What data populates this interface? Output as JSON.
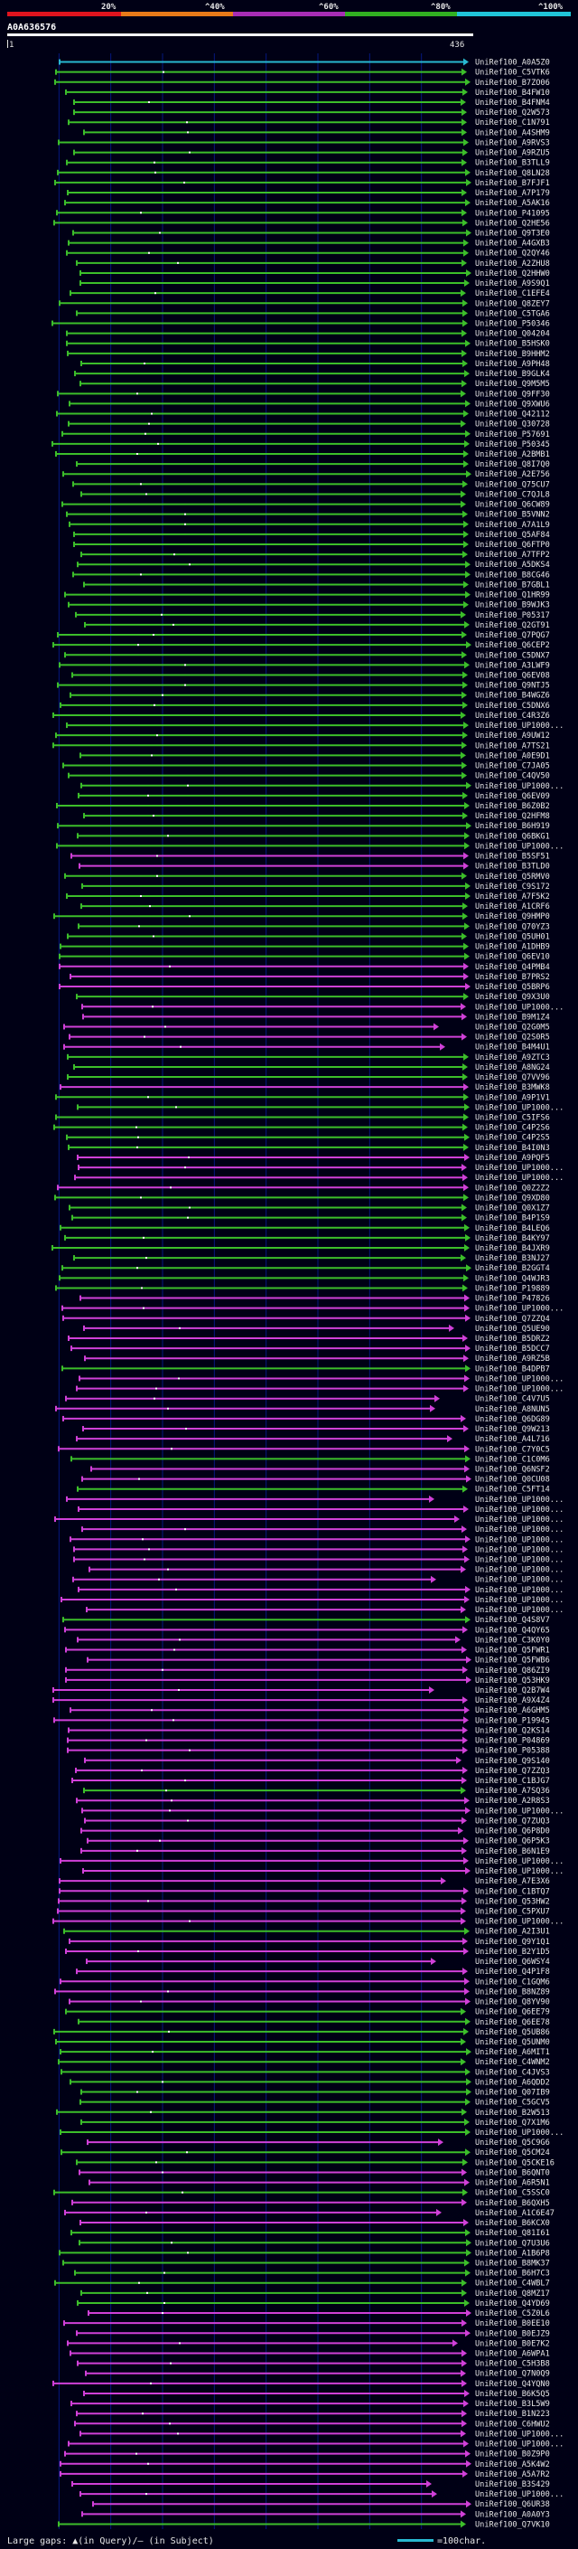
{
  "colors": {
    "background": "#000015",
    "scale_segments": [
      "#e0141e",
      "#e87a19",
      "#a72db4",
      "#31b021",
      "#20c5d8"
    ],
    "green_hit": "#3cbe2a",
    "magenta_hit": "#d040d8",
    "cyan_query": "#28b8d0",
    "gap_dot": "#ffffff",
    "label": "#e6e6e6",
    "grid": "#0a2bd6"
  },
  "scale": {
    "ticks": [
      "20%",
      "^40%",
      "^60%",
      "^80%",
      "^100%"
    ]
  },
  "query": {
    "id": "A0A636576",
    "start_label": "1",
    "end_label": "436"
  },
  "legend": {
    "text": "Large gaps: ▲(in Query)/– (in Subject)",
    "scale_text": "=100char."
  },
  "hits": [
    {
      "label": "UniRef100_A0A5Z0",
      "kind": "cyan"
    },
    {
      "label": "UniRef100_C5VTK6",
      "kind": "green"
    },
    {
      "label": "UniRef100_B7ZO06",
      "kind": "green"
    },
    {
      "label": "UniRef100_B4FW10",
      "kind": "green"
    },
    {
      "label": "UniRef100_B4FNM4",
      "kind": "green"
    },
    {
      "label": "UniRef100_Q2W573",
      "kind": "green"
    },
    {
      "label": "UniRef100_C1N791",
      "kind": "green"
    },
    {
      "label": "UniRef100_A4SHM9",
      "kind": "green"
    },
    {
      "label": "UniRef100_A9RVS3",
      "kind": "green"
    },
    {
      "label": "UniRef100_A9RZU5",
      "kind": "green"
    },
    {
      "label": "UniRef100_B3TLL9",
      "kind": "green"
    },
    {
      "label": "UniRef100_Q8LN28",
      "kind": "green"
    },
    {
      "label": "UniRef100_B7FJF1",
      "kind": "green"
    },
    {
      "label": "UniRef100_A7P179",
      "kind": "green"
    },
    {
      "label": "UniRef100_A5AK16",
      "kind": "green"
    },
    {
      "label": "UniRef100_P41095",
      "kind": "green"
    },
    {
      "label": "UniRef100_Q2HE56",
      "kind": "green"
    },
    {
      "label": "UniRef100_Q9T3E0",
      "kind": "green"
    },
    {
      "label": "UniRef100_A4GXB3",
      "kind": "green"
    },
    {
      "label": "UniRef100_Q2QY46",
      "kind": "green"
    },
    {
      "label": "UniRef100_A2ZHU8",
      "kind": "green"
    },
    {
      "label": "UniRef100_Q2HHW0",
      "kind": "green"
    },
    {
      "label": "UniRef100_A9S9Q1",
      "kind": "green"
    },
    {
      "label": "UniRef100_C1EFE4",
      "kind": "green"
    },
    {
      "label": "UniRef100_Q8ZEY7",
      "kind": "green"
    },
    {
      "label": "UniRef100_C5TGA6",
      "kind": "green"
    },
    {
      "label": "UniRef100_P50346",
      "kind": "green"
    },
    {
      "label": "UniRef100_Q04204",
      "kind": "green"
    },
    {
      "label": "UniRef100_B5HSK0",
      "kind": "green"
    },
    {
      "label": "UniRef100_B9HHM2",
      "kind": "green"
    },
    {
      "label": "UniRef100_A9PH48",
      "kind": "green"
    },
    {
      "label": "UniRef100_B9GLK4",
      "kind": "green"
    },
    {
      "label": "UniRef100_Q9M5M5",
      "kind": "green"
    },
    {
      "label": "UniRef100_Q9FF30",
      "kind": "green"
    },
    {
      "label": "UniRef100_Q9XWU6",
      "kind": "green"
    },
    {
      "label": "UniRef100_Q42112",
      "kind": "green"
    },
    {
      "label": "UniRef100_Q30728",
      "kind": "green"
    },
    {
      "label": "UniRef100_P57691",
      "kind": "green"
    },
    {
      "label": "UniRef100_P50345",
      "kind": "green"
    },
    {
      "label": "UniRef100_A2BMB1",
      "kind": "green"
    },
    {
      "label": "UniRef100_Q8I7Q0",
      "kind": "green"
    },
    {
      "label": "UniRef100_A2E756",
      "kind": "green"
    },
    {
      "label": "UniRef100_Q75CU7",
      "kind": "green"
    },
    {
      "label": "UniRef100_C7QJL8",
      "kind": "green"
    },
    {
      "label": "UniRef100_Q6CW89",
      "kind": "green"
    },
    {
      "label": "UniRef100_B5VNN2",
      "kind": "green"
    },
    {
      "label": "UniRef100_A7A1L9",
      "kind": "green"
    },
    {
      "label": "UniRef100_Q5AF84",
      "kind": "green"
    },
    {
      "label": "UniRef100_Q6FTP0",
      "kind": "green"
    },
    {
      "label": "UniRef100_A7TFP2",
      "kind": "green"
    },
    {
      "label": "UniRef100_A5DKS4",
      "kind": "green"
    },
    {
      "label": "UniRef100_B8CG46",
      "kind": "green"
    },
    {
      "label": "UniRef100_B7GBL1",
      "kind": "green"
    },
    {
      "label": "UniRef100_Q1HR99",
      "kind": "green"
    },
    {
      "label": "UniRef100_B9WJK3",
      "kind": "green"
    },
    {
      "label": "UniRef100_P05317",
      "kind": "green"
    },
    {
      "label": "UniRef100_Q2GT91",
      "kind": "green"
    },
    {
      "label": "UniRef100_Q7PQG7",
      "kind": "green"
    },
    {
      "label": "UniRef100_Q6CEP2",
      "kind": "green"
    },
    {
      "label": "UniRef100_C5DNX7",
      "kind": "green"
    },
    {
      "label": "UniRef100_A3LWF9",
      "kind": "green"
    },
    {
      "label": "UniRef100_Q6EV08",
      "kind": "green"
    },
    {
      "label": "UniRef100_Q9NTJ5",
      "kind": "green"
    },
    {
      "label": "UniRef100_B4WGZ6",
      "kind": "green"
    },
    {
      "label": "UniRef100_C5DNX6",
      "kind": "green"
    },
    {
      "label": "UniRef100_C4R3Z6",
      "kind": "green"
    },
    {
      "label": "UniRef100_UP1000...",
      "kind": "green"
    },
    {
      "label": "UniRef100_A9UW12",
      "kind": "green"
    },
    {
      "label": "UniRef100_A7TS21",
      "kind": "green"
    },
    {
      "label": "UniRef100_A0E9D1",
      "kind": "green"
    },
    {
      "label": "UniRef100_C7JA05",
      "kind": "green"
    },
    {
      "label": "UniRef100_C4QV50",
      "kind": "green"
    },
    {
      "label": "UniRef100_UP1000...",
      "kind": "green"
    },
    {
      "label": "UniRef100_Q6EV09",
      "kind": "green"
    },
    {
      "label": "UniRef100_B6Z0B2",
      "kind": "green"
    },
    {
      "label": "UniRef100_Q2HFM8",
      "kind": "green"
    },
    {
      "label": "UniRef100_B6H919",
      "kind": "green"
    },
    {
      "label": "UniRef100_Q6BKG1",
      "kind": "green"
    },
    {
      "label": "UniRef100_UP1000...",
      "kind": "green"
    },
    {
      "label": "UniRef100_B5SF51",
      "kind": "magenta"
    },
    {
      "label": "UniRef100_B3TLD0",
      "kind": "magenta"
    },
    {
      "label": "UniRef100_Q5RMV0",
      "kind": "green"
    },
    {
      "label": "UniRef100_C9S172",
      "kind": "green"
    },
    {
      "label": "UniRef100_A7F5K2",
      "kind": "green"
    },
    {
      "label": "UniRef100_A1CRF6",
      "kind": "green"
    },
    {
      "label": "UniRef100_Q9HMP0",
      "kind": "green"
    },
    {
      "label": "UniRef100_Q70YZ3",
      "kind": "green"
    },
    {
      "label": "UniRef100_Q5UH01",
      "kind": "green"
    },
    {
      "label": "UniRef100_A1DHB9",
      "kind": "green"
    },
    {
      "label": "UniRef100_Q6EV10",
      "kind": "green"
    },
    {
      "label": "UniRef100_Q4PMB4",
      "kind": "magenta"
    },
    {
      "label": "UniRef100_B7PRS2",
      "kind": "magenta"
    },
    {
      "label": "UniRef100_Q5BRP6",
      "kind": "magenta"
    },
    {
      "label": "UniRef100_Q9X3U0",
      "kind": "green"
    },
    {
      "label": "UniRef100_UP1000...",
      "kind": "magenta"
    },
    {
      "label": "UniRef100_B9M1Z4",
      "kind": "magenta"
    },
    {
      "label": "UniRef100_Q2G0M5",
      "kind": "magenta"
    },
    {
      "label": "UniRef100_Q2S0R5",
      "kind": "magenta"
    },
    {
      "label": "UniRef100_B4M4U1",
      "kind": "magenta"
    },
    {
      "label": "UniRef100_A9ZTC3",
      "kind": "green"
    },
    {
      "label": "UniRef100_A8NG24",
      "kind": "green"
    },
    {
      "label": "UniRef100_Q7VV96",
      "kind": "green"
    },
    {
      "label": "UniRef100_B3MWK8",
      "kind": "magenta"
    },
    {
      "label": "UniRef100_A9P1V1",
      "kind": "green"
    },
    {
      "label": "UniRef100_UP1000...",
      "kind": "green"
    },
    {
      "label": "UniRef100_C5IFS6",
      "kind": "green"
    },
    {
      "label": "UniRef100_C4P2S6",
      "kind": "green"
    },
    {
      "label": "UniRef100_C4P2S5",
      "kind": "green"
    },
    {
      "label": "UniRef100_B4I0N3",
      "kind": "green"
    },
    {
      "label": "UniRef100_A9PQF5",
      "kind": "magenta"
    },
    {
      "label": "UniRef100_UP1000...",
      "kind": "magenta"
    },
    {
      "label": "UniRef100_UP1000...",
      "kind": "magenta"
    },
    {
      "label": "UniRef100_Q0Z2Z2",
      "kind": "magenta"
    },
    {
      "label": "UniRef100_Q9XD80",
      "kind": "green"
    },
    {
      "label": "UniRef100_Q0X1Z7",
      "kind": "green"
    },
    {
      "label": "UniRef100_B4P1S9",
      "kind": "green"
    },
    {
      "label": "UniRef100_B4LEQ6",
      "kind": "green"
    },
    {
      "label": "UniRef100_B4KY97",
      "kind": "green"
    },
    {
      "label": "UniRef100_B4JXR9",
      "kind": "green"
    },
    {
      "label": "UniRef100_B3NJ27",
      "kind": "green"
    },
    {
      "label": "UniRef100_B2GGT4",
      "kind": "green"
    },
    {
      "label": "UniRef100_Q4WJR3",
      "kind": "green"
    },
    {
      "label": "UniRef100_P19889",
      "kind": "green"
    },
    {
      "label": "UniRef100_P47826",
      "kind": "magenta"
    },
    {
      "label": "UniRef100_UP1000...",
      "kind": "magenta"
    },
    {
      "label": "UniRef100_Q7ZZQ4",
      "kind": "magenta"
    },
    {
      "label": "UniRef100_Q5UE90",
      "kind": "magenta"
    },
    {
      "label": "UniRef100_B5DRZ2",
      "kind": "magenta"
    },
    {
      "label": "UniRef100_B5DCC7",
      "kind": "magenta"
    },
    {
      "label": "UniRef100_A9RZ5B",
      "kind": "magenta"
    },
    {
      "label": "UniRef100_B4DPB7",
      "kind": "green"
    },
    {
      "label": "UniRef100_UP1000...",
      "kind": "magenta"
    },
    {
      "label": "UniRef100_UP1000...",
      "kind": "magenta"
    },
    {
      "label": "UniRef100_C4V7U5",
      "kind": "magenta"
    },
    {
      "label": "UniRef100_A8NUN5",
      "kind": "magenta"
    },
    {
      "label": "UniRef100_Q6DG89",
      "kind": "magenta"
    },
    {
      "label": "UniRef100_Q9W213",
      "kind": "magenta"
    },
    {
      "label": "UniRef100_A4L716",
      "kind": "magenta"
    },
    {
      "label": "UniRef100_C7Y0C5",
      "kind": "magenta"
    },
    {
      "label": "UniRef100_C1C0M6",
      "kind": "green"
    },
    {
      "label": "UniRef100_Q6NSF2",
      "kind": "magenta"
    },
    {
      "label": "UniRef100_Q0CU08",
      "kind": "magenta"
    },
    {
      "label": "UniRef100_C5FT14",
      "kind": "green"
    },
    {
      "label": "UniRef100_UP1000...",
      "kind": "magenta"
    },
    {
      "label": "UniRef100_UP1000...",
      "kind": "magenta"
    },
    {
      "label": "UniRef100_UP1000...",
      "kind": "magenta"
    },
    {
      "label": "UniRef100_UP1000...",
      "kind": "magenta"
    },
    {
      "label": "UniRef100_UP1000...",
      "kind": "magenta"
    },
    {
      "label": "UniRef100_UP1000...",
      "kind": "magenta"
    },
    {
      "label": "UniRef100_UP1000...",
      "kind": "magenta"
    },
    {
      "label": "UniRef100_UP1000...",
      "kind": "magenta"
    },
    {
      "label": "UniRef100_UP1000...",
      "kind": "magenta"
    },
    {
      "label": "UniRef100_UP1000...",
      "kind": "magenta"
    },
    {
      "label": "UniRef100_UP1000...",
      "kind": "magenta"
    },
    {
      "label": "UniRef100_UP1000...",
      "kind": "magenta"
    },
    {
      "label": "UniRef100_Q4S8V7",
      "kind": "green"
    },
    {
      "label": "UniRef100_Q4QY65",
      "kind": "magenta"
    },
    {
      "label": "UniRef100_C3K0Y0",
      "kind": "magenta"
    },
    {
      "label": "UniRef100_Q5FWR1",
      "kind": "magenta"
    },
    {
      "label": "UniRef100_Q5FWB6",
      "kind": "magenta"
    },
    {
      "label": "UniRef100_Q86ZI9",
      "kind": "magenta"
    },
    {
      "label": "UniRef100_Q53HK9",
      "kind": "magenta"
    },
    {
      "label": "UniRef100_Q2B7W4",
      "kind": "magenta"
    },
    {
      "label": "UniRef100_A9X4Z4",
      "kind": "magenta"
    },
    {
      "label": "UniRef100_A6GHM5",
      "kind": "magenta"
    },
    {
      "label": "UniRef100_P19945",
      "kind": "magenta"
    },
    {
      "label": "UniRef100_Q2KS14",
      "kind": "magenta"
    },
    {
      "label": "UniRef100_P04869",
      "kind": "magenta"
    },
    {
      "label": "UniRef100_P05388",
      "kind": "magenta"
    },
    {
      "label": "UniRef100_Q9S140",
      "kind": "magenta"
    },
    {
      "label": "UniRef100_Q7ZZQ3",
      "kind": "magenta"
    },
    {
      "label": "UniRef100_C1BJG7",
      "kind": "magenta"
    },
    {
      "label": "UniRef100_A7SQ36",
      "kind": "green"
    },
    {
      "label": "UniRef100_A2R8S3",
      "kind": "magenta"
    },
    {
      "label": "UniRef100_UP1000...",
      "kind": "magenta"
    },
    {
      "label": "UniRef100_Q7ZUQ3",
      "kind": "magenta"
    },
    {
      "label": "UniRef100_Q6P8D0",
      "kind": "magenta"
    },
    {
      "label": "UniRef100_Q6P5K3",
      "kind": "magenta"
    },
    {
      "label": "UniRef100_B6N1E9",
      "kind": "magenta"
    },
    {
      "label": "UniRef100_UP1000...",
      "kind": "magenta"
    },
    {
      "label": "UniRef100_UP1000...",
      "kind": "magenta"
    },
    {
      "label": "UniRef100_A7E3X6",
      "kind": "magenta"
    },
    {
      "label": "UniRef100_C1BTQ7",
      "kind": "magenta"
    },
    {
      "label": "UniRef100_Q53HW2",
      "kind": "magenta"
    },
    {
      "label": "UniRef100_C5PXU7",
      "kind": "magenta"
    },
    {
      "label": "UniRef100_UP1000...",
      "kind": "magenta"
    },
    {
      "label": "UniRef100_A2I3U1",
      "kind": "green"
    },
    {
      "label": "UniRef100_Q9Y1Q1",
      "kind": "magenta"
    },
    {
      "label": "UniRef100_B2Y1D5",
      "kind": "magenta"
    },
    {
      "label": "UniRef100_Q6WSY4",
      "kind": "magenta"
    },
    {
      "label": "UniRef100_Q4P1F8",
      "kind": "magenta"
    },
    {
      "label": "UniRef100_C1GQM6",
      "kind": "magenta"
    },
    {
      "label": "UniRef100_B8NZ89",
      "kind": "magenta"
    },
    {
      "label": "UniRef100_Q8YV90",
      "kind": "magenta"
    },
    {
      "label": "UniRef100_Q6EE79",
      "kind": "green"
    },
    {
      "label": "UniRef100_Q6EE78",
      "kind": "green"
    },
    {
      "label": "UniRef100_Q5UB86",
      "kind": "green"
    },
    {
      "label": "UniRef100_Q5UNM0",
      "kind": "green"
    },
    {
      "label": "UniRef100_A6MIT1",
      "kind": "green"
    },
    {
      "label": "UniRef100_C4WNM2",
      "kind": "green"
    },
    {
      "label": "UniRef100_C4JVS3",
      "kind": "green"
    },
    {
      "label": "UniRef100_A6QDD2",
      "kind": "green"
    },
    {
      "label": "UniRef100_Q07IB9",
      "kind": "green"
    },
    {
      "label": "UniRef100_C5GCV5",
      "kind": "green"
    },
    {
      "label": "UniRef100_B2W513",
      "kind": "green"
    },
    {
      "label": "UniRef100_Q7X1M6",
      "kind": "green"
    },
    {
      "label": "UniRef100_UP1000...",
      "kind": "green"
    },
    {
      "label": "UniRef100_Q5C9G6",
      "kind": "magenta"
    },
    {
      "label": "UniRef100_Q5CM24",
      "kind": "green"
    },
    {
      "label": "UniRef100_Q5CKE16",
      "kind": "green"
    },
    {
      "label": "UniRef100_B6QNT0",
      "kind": "magenta"
    },
    {
      "label": "UniRef100_A6R5N1",
      "kind": "magenta"
    },
    {
      "label": "UniRef100_C5SSC0",
      "kind": "green"
    },
    {
      "label": "UniRef100_B6QXH5",
      "kind": "magenta"
    },
    {
      "label": "UniRef100_A1C6E47",
      "kind": "magenta"
    },
    {
      "label": "UniRef100_B6KCX0",
      "kind": "magenta"
    },
    {
      "label": "UniRef100_Q81I61",
      "kind": "green"
    },
    {
      "label": "UniRef100_Q7U3U6",
      "kind": "green"
    },
    {
      "label": "UniRef100_A1B6P8",
      "kind": "green"
    },
    {
      "label": "UniRef100_B8MK37",
      "kind": "green"
    },
    {
      "label": "UniRef100_B6H7C3",
      "kind": "green"
    },
    {
      "label": "UniRef100_C4WBL7",
      "kind": "green"
    },
    {
      "label": "UniRef100_Q8MZ17",
      "kind": "green"
    },
    {
      "label": "UniRef100_Q4YD69",
      "kind": "green"
    },
    {
      "label": "UniRef100_C5Z0L6",
      "kind": "magenta"
    },
    {
      "label": "UniRef100_B0EE10",
      "kind": "magenta"
    },
    {
      "label": "UniRef100_B0EJZ9",
      "kind": "magenta"
    },
    {
      "label": "UniRef100_B0E7K2",
      "kind": "magenta"
    },
    {
      "label": "UniRef100_A6WPA1",
      "kind": "magenta"
    },
    {
      "label": "UniRef100_C5H3B8",
      "kind": "magenta"
    },
    {
      "label": "UniRef100_Q7N0Q9",
      "kind": "magenta"
    },
    {
      "label": "UniRef100_Q4YQN0",
      "kind": "magenta"
    },
    {
      "label": "UniRef100_B6K5Q5",
      "kind": "magenta"
    },
    {
      "label": "UniRef100_B3L5W9",
      "kind": "magenta"
    },
    {
      "label": "UniRef100_B1N223",
      "kind": "magenta"
    },
    {
      "label": "UniRef100_C6HWU2",
      "kind": "magenta"
    },
    {
      "label": "UniRef100_UP1000...",
      "kind": "magenta"
    },
    {
      "label": "UniRef100_UP1000...",
      "kind": "magenta"
    },
    {
      "label": "UniRef100_B0Z9P0",
      "kind": "magenta"
    },
    {
      "label": "UniRef100_A5K4W2",
      "kind": "magenta"
    },
    {
      "label": "UniRef100_A5A7R2",
      "kind": "magenta"
    },
    {
      "label": "UniRef100_B3S429",
      "kind": "magenta"
    },
    {
      "label": "UniRef100_UP1000...",
      "kind": "magenta"
    },
    {
      "label": "UniRef100_Q6UR38",
      "kind": "magenta"
    },
    {
      "label": "UniRef100_A0A0Y3",
      "kind": "magenta"
    },
    {
      "label": "UniRef100_Q7VK10",
      "kind": "green"
    }
  ]
}
